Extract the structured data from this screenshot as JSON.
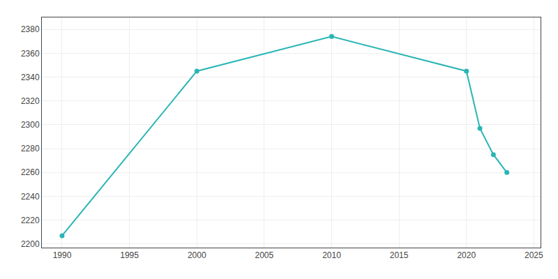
{
  "chart_data": {
    "type": "line",
    "x": [
      1990,
      2000,
      2010,
      2020,
      2021,
      2022,
      2023
    ],
    "values": [
      2207,
      2345,
      2374,
      2345,
      2297,
      2275,
      2260
    ],
    "color": "#2AB5B5",
    "marker": "circle",
    "xlim": [
      1988.5,
      2025.5
    ],
    "ylim": [
      2197,
      2390
    ],
    "xticks": [
      1990,
      1995,
      2000,
      2005,
      2010,
      2015,
      2020,
      2025
    ],
    "yticks": [
      2200,
      2220,
      2240,
      2260,
      2280,
      2300,
      2320,
      2340,
      2360,
      2380
    ],
    "grid": true
  }
}
